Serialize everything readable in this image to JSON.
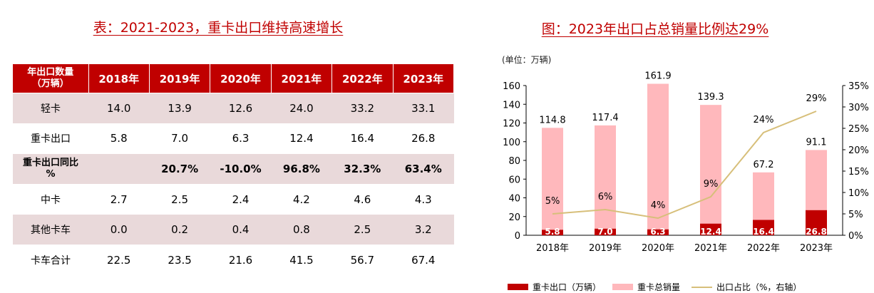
{
  "left_title": "表：2021-2023，重卡出口维持高速增长",
  "right_title": "图：2023年出口占总销量比例达29%",
  "table": {
    "header_first": "年出口数量（万辆）",
    "header_first_l1": "年出口数量",
    "header_first_l2": "（万辆）",
    "years": [
      "2018年",
      "2019年",
      "2020年",
      "2021年",
      "2022年",
      "2023年"
    ],
    "rows": [
      {
        "label": "轻卡",
        "values": [
          "14.0",
          "13.9",
          "12.6",
          "24.0",
          "33.2",
          "33.1"
        ],
        "bold": false
      },
      {
        "label": "重卡出口",
        "values": [
          "5.8",
          "7.0",
          "6.3",
          "12.4",
          "16.4",
          "26.8"
        ],
        "bold": false
      },
      {
        "label": "重卡出口同比%",
        "label_l1": "重卡出口同比",
        "label_l2": "%",
        "values": [
          "",
          "20.7%",
          "-10.0%",
          "96.8%",
          "32.3%",
          "63.4%"
        ],
        "bold": true
      },
      {
        "label": "中卡",
        "values": [
          "2.7",
          "2.5",
          "2.4",
          "4.2",
          "4.6",
          "4.3"
        ],
        "bold": false
      },
      {
        "label": "其他卡车",
        "values": [
          "0.0",
          "0.2",
          "0.4",
          "0.8",
          "2.5",
          "3.2"
        ],
        "bold": false
      },
      {
        "label": "卡车合计",
        "values": [
          "22.5",
          "23.5",
          "21.6",
          "41.5",
          "56.7",
          "67.4"
        ],
        "bold": false
      }
    ]
  },
  "chart_unit": "(单位：万辆)",
  "chart_data": {
    "type": "bar",
    "categories": [
      "2018年",
      "2019年",
      "2020年",
      "2021年",
      "2022年",
      "2023年"
    ],
    "series": [
      {
        "name": "重卡出口（万辆）",
        "values": [
          5.8,
          7.0,
          6.3,
          12.4,
          16.4,
          26.8
        ],
        "color": "#c00000",
        "axis": "left"
      },
      {
        "name": "重卡总销量",
        "values": [
          114.8,
          117.4,
          161.9,
          139.3,
          67.2,
          91.1
        ],
        "color": "#ffb8bc",
        "axis": "left"
      },
      {
        "name": "出口占比（%，右轴）",
        "values": [
          5,
          6,
          4,
          9,
          24,
          29
        ],
        "color": "#d7bf7a",
        "axis": "right",
        "type": "line"
      }
    ],
    "export_labels": [
      "5.8",
      "7.0",
      "6.3",
      "12.4",
      "16.4",
      "26.8"
    ],
    "total_labels": [
      "114.8",
      "117.4",
      "161.9",
      "139.3",
      "67.2",
      "91.1"
    ],
    "ratio_labels": [
      "5%",
      "6%",
      "4%",
      "9%",
      "24%",
      "29%"
    ],
    "ylim_left": [
      0,
      160
    ],
    "yticks_left": [
      "0",
      "20",
      "40",
      "60",
      "80",
      "100",
      "120",
      "140",
      "160"
    ],
    "ylim_right": [
      0,
      35
    ],
    "yticks_right": [
      "0%",
      "5%",
      "10%",
      "15%",
      "20%",
      "25%",
      "30%",
      "35%"
    ],
    "grid": false,
    "legend_position": "bottom"
  }
}
